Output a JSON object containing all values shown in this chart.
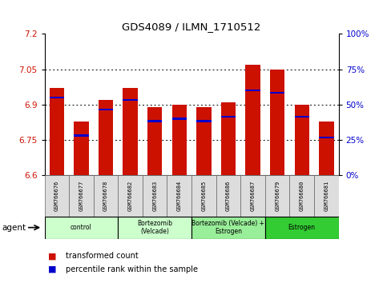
{
  "title": "GDS4089 / ILMN_1710512",
  "samples": [
    "GSM766676",
    "GSM766677",
    "GSM766678",
    "GSM766682",
    "GSM766683",
    "GSM766684",
    "GSM766685",
    "GSM766686",
    "GSM766687",
    "GSM766679",
    "GSM766680",
    "GSM766681"
  ],
  "red_values": [
    6.97,
    6.83,
    6.92,
    6.97,
    6.89,
    6.9,
    6.89,
    6.91,
    7.07,
    7.05,
    6.9,
    6.83
  ],
  "blue_values": [
    6.93,
    6.77,
    6.88,
    6.92,
    6.83,
    6.84,
    6.83,
    6.85,
    6.96,
    6.95,
    6.85,
    6.76
  ],
  "ymin": 6.6,
  "ymax": 7.2,
  "yticks_left": [
    6.6,
    6.75,
    6.9,
    7.05,
    7.2
  ],
  "yticks_right": [
    0,
    25,
    50,
    75,
    100
  ],
  "groups": [
    {
      "label": "control",
      "start": 0,
      "end": 3,
      "color": "#ccffcc"
    },
    {
      "label": "Bortezomib\n(Velcade)",
      "start": 3,
      "end": 6,
      "color": "#ccffcc"
    },
    {
      "label": "Bortezomib (Velcade) +\nEstrogen",
      "start": 6,
      "end": 9,
      "color": "#99ee99"
    },
    {
      "label": "Estrogen",
      "start": 9,
      "end": 12,
      "color": "#33cc33"
    }
  ],
  "bar_color": "#cc1100",
  "blue_color": "#0000cc",
  "legend_red": "transformed count",
  "legend_blue": "percentile rank within the sample",
  "agent_label": "agent",
  "grid_yticks": [
    6.75,
    6.9,
    7.05
  ]
}
